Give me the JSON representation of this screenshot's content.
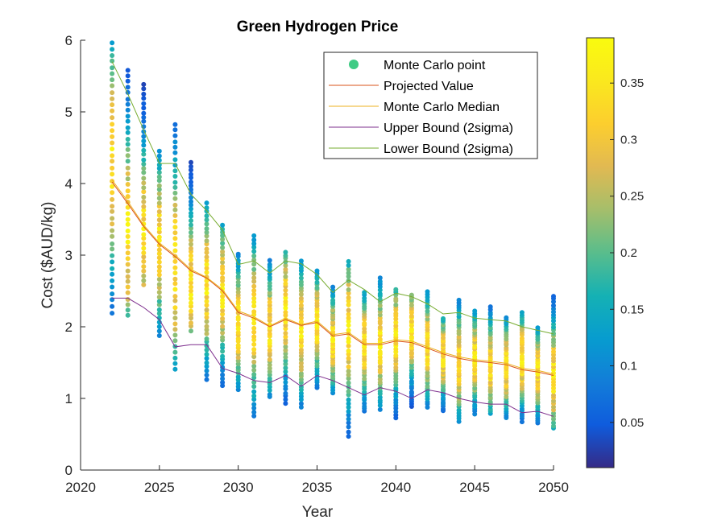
{
  "chart_data": {
    "type": "scatter",
    "title": "Green Hydrogen Price",
    "xlabel": "Year",
    "ylabel": "Cost ($AUD/kg)",
    "xlim": [
      2020,
      2050
    ],
    "ylim": [
      0,
      6
    ],
    "xticks": [
      "2020",
      "2025",
      "2030",
      "2035",
      "2040",
      "2045",
      "2050"
    ],
    "yticks": [
      "0",
      "1",
      "2",
      "3",
      "4",
      "5",
      "6"
    ],
    "grid": false,
    "legend_position": "top-right",
    "legend": [
      {
        "label": "Monte Carlo point",
        "kind": "marker",
        "color": "#3FCB84"
      },
      {
        "label": "Projected Value",
        "kind": "line",
        "color": "#D95319"
      },
      {
        "label": "Monte Carlo Median",
        "kind": "line",
        "color": "#EDB120"
      },
      {
        "label": "Upper Bound (2sigma)",
        "kind": "line",
        "color": "#7E2F8E"
      },
      {
        "label": "Lower Bound (2sigma)",
        "kind": "line",
        "color": "#77AC30"
      }
    ],
    "colorbar": {
      "range": [
        0.01,
        0.39
      ],
      "ticks": [
        "0.05",
        "0.1",
        "0.15",
        "0.2",
        "0.25",
        "0.3",
        "0.35"
      ],
      "colormap": "parula"
    },
    "x": [
      2022,
      2023,
      2024,
      2025,
      2026,
      2027,
      2028,
      2029,
      2030,
      2031,
      2032,
      2033,
      2034,
      2035,
      2036,
      2037,
      2038,
      2039,
      2040,
      2041,
      2042,
      2043,
      2044,
      2045,
      2046,
      2047,
      2048,
      2049,
      2050
    ],
    "series": [
      {
        "name": "Projected Value",
        "color": "#D95319",
        "values": [
          4.02,
          3.72,
          3.4,
          3.15,
          2.98,
          2.78,
          2.68,
          2.5,
          2.2,
          2.12,
          2.0,
          2.1,
          2.02,
          2.06,
          1.87,
          1.9,
          1.75,
          1.75,
          1.8,
          1.78,
          1.7,
          1.62,
          1.56,
          1.52,
          1.5,
          1.47,
          1.4,
          1.37,
          1.32
        ]
      },
      {
        "name": "Monte Carlo Median",
        "color": "#EDB120",
        "values": [
          4.05,
          3.75,
          3.42,
          3.17,
          3.0,
          2.8,
          2.69,
          2.52,
          2.22,
          2.14,
          2.01,
          2.12,
          2.03,
          2.08,
          1.89,
          1.92,
          1.77,
          1.77,
          1.82,
          1.8,
          1.72,
          1.64,
          1.58,
          1.54,
          1.52,
          1.49,
          1.42,
          1.39,
          1.34
        ]
      },
      {
        "name": "Upper Bound (2sigma)",
        "color": "#7E2F8E",
        "values": [
          2.4,
          2.4,
          2.27,
          2.1,
          1.72,
          1.75,
          1.75,
          1.42,
          1.35,
          1.25,
          1.22,
          1.32,
          1.17,
          1.32,
          1.25,
          1.15,
          1.05,
          1.15,
          1.1,
          1.0,
          1.12,
          1.08,
          1.0,
          0.95,
          0.92,
          0.92,
          0.8,
          0.82,
          0.75
        ]
      },
      {
        "name": "Lower Bound (2sigma)",
        "color": "#77AC30",
        "values": [
          5.7,
          5.25,
          4.75,
          4.28,
          4.28,
          3.85,
          3.62,
          3.35,
          2.87,
          2.92,
          2.75,
          2.92,
          2.88,
          2.73,
          2.48,
          2.65,
          2.52,
          2.35,
          2.47,
          2.42,
          2.32,
          2.18,
          2.2,
          2.12,
          2.1,
          2.08,
          2.0,
          1.95,
          1.9
        ]
      }
    ],
    "scatter_summary": [
      {
        "x": 2022,
        "min": 2.2,
        "max": 5.97,
        "peak": 4.35
      },
      {
        "x": 2023,
        "min": 2.15,
        "max": 5.58,
        "peak": 3.3
      },
      {
        "x": 2024,
        "min": 2.58,
        "max": 5.38,
        "peak": 3.3
      },
      {
        "x": 2025,
        "min": 1.88,
        "max": 4.45,
        "peak": 3.2
      },
      {
        "x": 2026,
        "min": 1.4,
        "max": 4.82,
        "peak": 2.85
      },
      {
        "x": 2027,
        "min": 1.95,
        "max": 4.3,
        "peak": 2.6
      },
      {
        "x": 2028,
        "min": 1.27,
        "max": 3.72,
        "peak": 2.6
      },
      {
        "x": 2029,
        "min": 1.18,
        "max": 3.42,
        "peak": 2.5
      },
      {
        "x": 2030,
        "min": 1.13,
        "max": 3.02,
        "peak": 2.05
      },
      {
        "x": 2031,
        "min": 0.75,
        "max": 3.28,
        "peak": 2.1
      },
      {
        "x": 2032,
        "min": 1.02,
        "max": 2.92,
        "peak": 1.95
      },
      {
        "x": 2033,
        "min": 0.93,
        "max": 3.05,
        "peak": 2.25
      },
      {
        "x": 2034,
        "min": 0.88,
        "max": 2.92,
        "peak": 1.95
      },
      {
        "x": 2035,
        "min": 1.15,
        "max": 2.78,
        "peak": 2.05
      },
      {
        "x": 2036,
        "min": 1.08,
        "max": 2.55,
        "peak": 1.8
      },
      {
        "x": 2037,
        "min": 0.48,
        "max": 2.92,
        "peak": 1.95
      },
      {
        "x": 2038,
        "min": 0.82,
        "max": 2.48,
        "peak": 1.75
      },
      {
        "x": 2039,
        "min": 0.85,
        "max": 2.68,
        "peak": 1.75
      },
      {
        "x": 2040,
        "min": 0.73,
        "max": 2.52,
        "peak": 1.85
      },
      {
        "x": 2041,
        "min": 0.88,
        "max": 2.45,
        "peak": 1.95
      },
      {
        "x": 2042,
        "min": 0.88,
        "max": 2.48,
        "peak": 1.72
      },
      {
        "x": 2043,
        "min": 0.83,
        "max": 2.12,
        "peak": 1.6
      },
      {
        "x": 2044,
        "min": 0.68,
        "max": 2.38,
        "peak": 1.5
      },
      {
        "x": 2045,
        "min": 0.78,
        "max": 2.22,
        "peak": 1.55
      },
      {
        "x": 2046,
        "min": 0.78,
        "max": 2.27,
        "peak": 1.45
      },
      {
        "x": 2047,
        "min": 0.73,
        "max": 2.13,
        "peak": 1.45
      },
      {
        "x": 2048,
        "min": 0.68,
        "max": 2.2,
        "peak": 1.55
      },
      {
        "x": 2049,
        "min": 0.65,
        "max": 1.98,
        "peak": 1.4
      },
      {
        "x": 2050,
        "min": 0.58,
        "max": 2.43,
        "peak": 1.3
      }
    ]
  }
}
